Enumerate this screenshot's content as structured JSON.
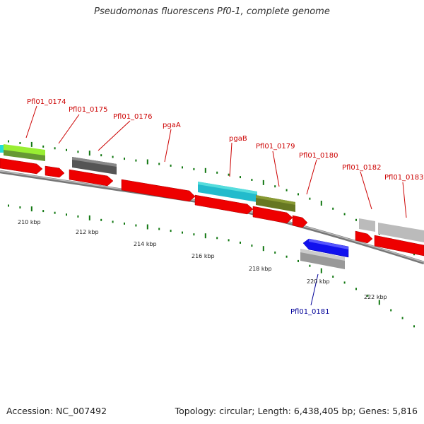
{
  "title": "Pseudomonas fluorescens Pf0-1, complete genome",
  "footer": {
    "accession": "Accession: NC_007492",
    "summary": "Topology: circular; Length: 6,438,405 bp; Genes: 5,816"
  },
  "scale_labels": [
    "210 kbp",
    "212 kbp",
    "214 kbp",
    "216 kbp",
    "218 kbp",
    "220 kbp",
    "222 kbp"
  ],
  "colors": {
    "forward_gene": "#ee0000",
    "reverse_gene": "#0000ee",
    "backbone": "#888888",
    "tick": "#117711"
  },
  "gene_labels": [
    {
      "text": "Pfl01_0174",
      "color": "#cc0000"
    },
    {
      "text": "Pfl01_0175",
      "color": "#cc0000"
    },
    {
      "text": "Pfl01_0176",
      "color": "#cc0000"
    },
    {
      "text": "pgaA",
      "color": "#cc0000"
    },
    {
      "text": "pgaB",
      "color": "#cc0000"
    },
    {
      "text": "Pfl01_0179",
      "color": "#cc0000"
    },
    {
      "text": "Pfl01_0180",
      "color": "#cc0000"
    },
    {
      "text": "Pfl01_0182",
      "color": "#cc0000"
    },
    {
      "text": "Pfl01_0183",
      "color": "#cc0000"
    },
    {
      "text": "Pfl01_0181",
      "color": "#000099"
    }
  ]
}
